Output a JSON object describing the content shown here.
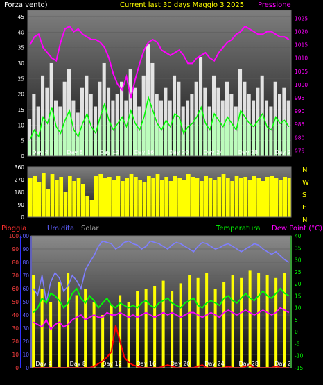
{
  "header": {
    "left_title": "Forza vento)",
    "center_title": "Current last 30 days Maggio 3 2025",
    "right_title": "Pressione"
  },
  "compass": [
    "N",
    "W",
    "S",
    "E",
    "N"
  ],
  "bottom_header": {
    "pioggia": "Pioggia",
    "umidita": "Umidita",
    "solar": "Solar",
    "temperatura": "Temperatura",
    "dewpoint": "Dew Point (°C)"
  },
  "colors": {
    "wind": "#ffffff",
    "gust": "#00ff00",
    "pressure": "#ff00ff",
    "direction": "#ffff00",
    "rain": "#ff0000",
    "humidity": "#7f7fff",
    "solar": "#ffff00",
    "temperature": "#00ff00",
    "dewpoint": "#ff00ff",
    "pioggia_label": "#ff3030",
    "umidita_label": "#6060ff",
    "solar_label": "#a0a0a0"
  },
  "chart_data": [
    {
      "type": "line",
      "panel": "wind_pressure",
      "xlabel_ticks": [
        "Day 4",
        "Day 8",
        "Day 12",
        "Day 16",
        "Day 20",
        "Day 24",
        "Day 28",
        "Day 2"
      ],
      "y_left_ticks": [
        0,
        5,
        10,
        15,
        20,
        25,
        30,
        35,
        40,
        45
      ],
      "y_left_range": [
        0,
        47
      ],
      "y_right_ticks": [
        975,
        980,
        985,
        990,
        995,
        1000,
        1005,
        1010,
        1015,
        1020,
        1025
      ],
      "y_right_range": [
        973,
        1028
      ],
      "series": [
        {
          "key": "wind",
          "values": [
            5,
            8,
            6,
            12,
            10,
            15,
            9,
            7,
            11,
            14,
            8,
            6,
            10,
            13,
            9,
            7,
            12,
            16,
            11,
            8,
            10,
            12,
            9,
            14,
            10,
            8,
            12,
            18,
            14,
            10,
            8,
            11,
            9,
            13,
            12,
            7,
            9,
            10,
            12,
            15,
            10,
            8,
            13,
            11,
            9,
            12,
            10,
            8,
            14,
            12,
            10,
            9,
            11,
            13,
            9,
            8,
            12,
            10,
            11,
            9
          ]
        },
        {
          "key": "gust",
          "values": [
            12,
            20,
            16,
            26,
            22,
            30,
            18,
            16,
            24,
            28,
            18,
            14,
            22,
            26,
            20,
            16,
            24,
            30,
            22,
            18,
            20,
            24,
            18,
            28,
            22,
            16,
            26,
            36,
            30,
            20,
            18,
            22,
            18,
            26,
            24,
            16,
            18,
            20,
            24,
            32,
            22,
            16,
            26,
            22,
            18,
            24,
            20,
            16,
            28,
            24,
            20,
            18,
            22,
            26,
            18,
            16,
            24,
            20,
            22,
            18
          ]
        },
        {
          "key": "pressure",
          "values": [
            1015,
            1018,
            1019,
            1014,
            1012,
            1010,
            1009,
            1016,
            1021,
            1022,
            1020,
            1021,
            1019,
            1018,
            1017,
            1017,
            1016,
            1014,
            1010,
            1004,
            1000,
            998,
            1003,
            995,
            1002,
            1008,
            1013,
            1016,
            1017,
            1016,
            1013,
            1012,
            1011,
            1012,
            1013,
            1011,
            1008,
            1008,
            1010,
            1011,
            1012,
            1010,
            1009,
            1012,
            1014,
            1016,
            1017,
            1019,
            1020,
            1022,
            1021,
            1020,
            1019,
            1019,
            1020,
            1020,
            1019,
            1018,
            1018,
            1017
          ]
        }
      ]
    },
    {
      "type": "bar",
      "panel": "wind_direction",
      "y_ticks": [
        0,
        90,
        180,
        270,
        360
      ],
      "y_range": [
        0,
        360
      ],
      "values": [
        280,
        300,
        250,
        320,
        200,
        310,
        270,
        290,
        180,
        300,
        260,
        280,
        240,
        150,
        120,
        300,
        310,
        280,
        290,
        270,
        300,
        260,
        280,
        310,
        290,
        270,
        250,
        300,
        280,
        310,
        270,
        290,
        260,
        300,
        280,
        270,
        310,
        290,
        280,
        260,
        300,
        280,
        270,
        290,
        310,
        280,
        260,
        300,
        280,
        290,
        270,
        300,
        280,
        260,
        290,
        300,
        280,
        270,
        290,
        280
      ]
    },
    {
      "type": "line",
      "panel": "rain_humidity_temp",
      "y_left_ticks": [
        0,
        10,
        20,
        30,
        40,
        50,
        60,
        70,
        80,
        90,
        100
      ],
      "y_left_range": [
        0,
        100
      ],
      "y_right_ticks": [
        -15,
        -10,
        -5,
        0,
        5,
        10,
        15,
        20,
        25,
        30,
        35,
        40
      ],
      "y_right_range": [
        -15,
        40
      ],
      "series": [
        {
          "key": "humidity",
          "values": [
            60,
            55,
            70,
            50,
            65,
            72,
            68,
            58,
            62,
            70,
            66,
            60,
            74,
            80,
            85,
            92,
            96,
            95,
            94,
            90,
            92,
            95,
            96,
            94,
            93,
            90,
            92,
            96,
            95,
            94,
            92,
            90,
            93,
            95,
            94,
            92,
            90,
            88,
            92,
            95,
            94,
            92,
            90,
            91,
            93,
            94,
            92,
            90,
            88,
            90,
            92,
            94,
            93,
            90,
            88,
            86,
            88,
            85,
            82,
            80
          ]
        },
        {
          "key": "temperature",
          "values": [
            8,
            10,
            14,
            12,
            16,
            15,
            13,
            10,
            12,
            16,
            18,
            14,
            12,
            15,
            13,
            10,
            12,
            14,
            11,
            10,
            12,
            11,
            10,
            11,
            10,
            12,
            13,
            11,
            10,
            12,
            13,
            14,
            12,
            11,
            10,
            12,
            13,
            14,
            11,
            10,
            12,
            13,
            12,
            11,
            14,
            15,
            13,
            12,
            14,
            16,
            14,
            13,
            15,
            17,
            15,
            14,
            16,
            18,
            16,
            15
          ]
        },
        {
          "key": "dewpoint",
          "values": [
            4,
            3,
            2,
            5,
            1,
            3,
            4,
            2,
            3,
            5,
            6,
            7,
            5,
            6,
            7,
            6,
            6,
            8,
            7,
            7,
            8,
            7,
            6,
            7,
            6,
            7,
            8,
            7,
            6,
            7,
            8,
            7,
            8,
            7,
            6,
            7,
            8,
            8,
            7,
            6,
            7,
            8,
            7,
            6,
            8,
            9,
            8,
            7,
            8,
            9,
            8,
            7,
            8,
            9,
            8,
            7,
            8,
            10,
            9,
            8
          ]
        },
        {
          "key": "solar",
          "values": [
            70,
            0,
            60,
            0,
            50,
            0,
            65,
            0,
            72,
            0,
            55,
            0,
            60,
            0,
            50,
            0,
            40,
            0,
            48,
            0,
            55,
            0,
            50,
            0,
            58,
            0,
            60,
            0,
            62,
            0,
            66,
            0,
            58,
            0,
            64,
            0,
            70,
            0,
            68,
            0,
            72,
            0,
            60,
            0,
            65,
            0,
            70,
            0,
            68,
            0,
            74,
            0,
            72,
            0,
            70,
            0,
            68,
            0,
            72,
            0
          ]
        },
        {
          "key": "rain",
          "values": [
            0,
            0,
            0,
            0,
            0,
            0,
            0,
            0,
            0,
            0,
            0,
            0,
            0,
            0,
            1,
            3,
            5,
            8,
            12,
            32,
            20,
            8,
            4,
            2,
            1,
            0,
            0,
            0,
            0,
            0,
            1,
            2,
            1,
            0,
            0,
            0,
            0,
            0,
            1,
            2,
            0,
            0,
            0,
            0,
            0,
            1,
            0,
            0,
            0,
            1,
            2,
            0,
            0,
            0,
            0,
            0,
            1,
            0,
            0,
            0
          ]
        }
      ]
    }
  ]
}
